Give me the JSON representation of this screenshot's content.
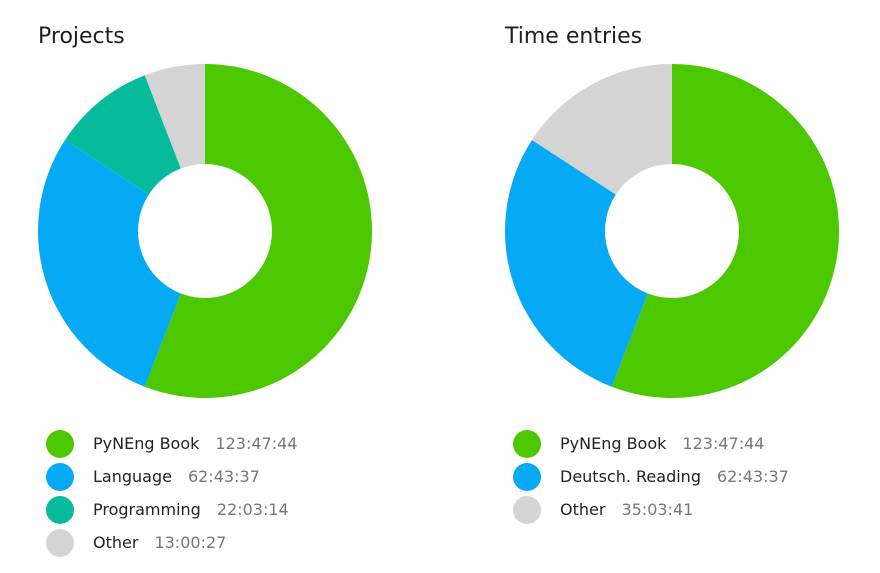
{
  "charts": [
    {
      "title": "Projects",
      "type": "pie",
      "legend": "bottom",
      "slices": [
        {
          "label": "PyNEng Book",
          "value": "123:47:44",
          "hours": 123.7956,
          "color": "#4BC800"
        },
        {
          "label": "Language",
          "value": "62:43:37",
          "hours": 62.7269,
          "color": "#06A9F4"
        },
        {
          "label": "Programming",
          "value": "22:03:14",
          "hours": 22.0539,
          "color": "#06BB9B"
        },
        {
          "label": "Other",
          "value": "13:00:27",
          "hours": 13.0075,
          "color": "#D4D4D4"
        }
      ]
    },
    {
      "title": "Time entries",
      "type": "pie",
      "legend": "bottom",
      "slices": [
        {
          "label": "PyNEng Book",
          "value": "123:47:44",
          "hours": 123.7956,
          "color": "#4BC800"
        },
        {
          "label": "Deutsch. Reading",
          "value": "62:43:37",
          "hours": 62.7269,
          "color": "#06A9F4"
        },
        {
          "label": "Other",
          "value": "35:03:41",
          "hours": 35.0614,
          "color": "#D4D4D4"
        }
      ]
    }
  ],
  "chart_data": [
    {
      "type": "pie",
      "title": "Projects",
      "labels": [
        "PyNEng Book",
        "Language",
        "Programming",
        "Other"
      ],
      "values": [
        123.7956,
        62.7269,
        22.0539,
        13.0075
      ],
      "value_labels": [
        "123:47:44",
        "62:43:37",
        "22:03:14",
        "13:00:27"
      ],
      "colors": [
        "#4BC800",
        "#06A9F4",
        "#06BB9B",
        "#D4D4D4"
      ],
      "legend": "bottom"
    },
    {
      "type": "pie",
      "title": "Time entries",
      "labels": [
        "PyNEng Book",
        "Deutsch. Reading",
        "Other"
      ],
      "values": [
        123.7956,
        62.7269,
        35.0614
      ],
      "value_labels": [
        "123:47:44",
        "62:43:37",
        "35:03:41"
      ],
      "colors": [
        "#4BC800",
        "#06A9F4",
        "#D4D4D4"
      ],
      "legend": "bottom"
    }
  ]
}
